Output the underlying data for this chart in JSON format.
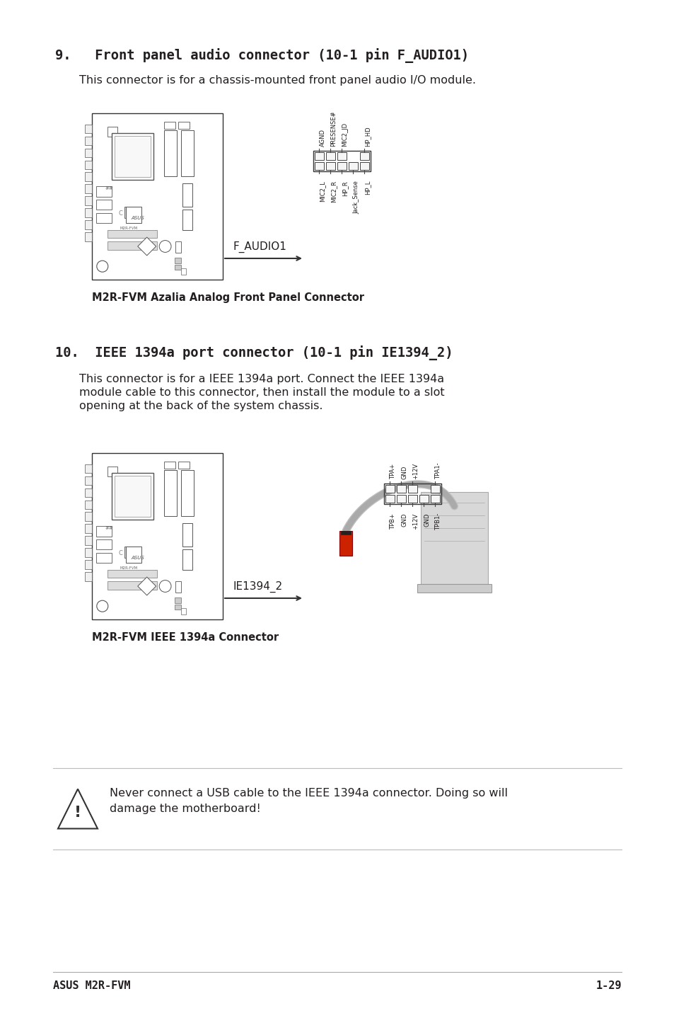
{
  "bg_color": "#ffffff",
  "text_color": "#231f20",
  "footer_left": "ASUS M2R-FVM",
  "footer_right": "1-29",
  "section9_title": "9.   Front panel audio connector (10-1 pin F_AUDIO1)",
  "section9_body": "This connector is for a chassis-mounted front panel audio I/O module.",
  "section9_caption": "M2R-FVM Azalia Analog Front Panel Connector",
  "section9_label": "F_AUDIO1",
  "section9_pins_top": [
    "AGND",
    "PRESENSE#",
    "MIC2_JD",
    "",
    "HP_HD"
  ],
  "section9_pins_bot": [
    "MIC2_L",
    "MIC2_R",
    "HP_R",
    "Jack_Sense",
    "HP_L"
  ],
  "section10_title": "10.  IEEE 1394a port connector (10-1 pin IE1394_2)",
  "section10_body": "This connector is for a IEEE 1394a port. Connect the IEEE 1394a\nmodule cable to this connector, then install the module to a slot\nopening at the back of the system chassis.",
  "section10_caption": "M2R-FVM IEEE 1394a Connector",
  "section10_label": "IE1394_2",
  "section10_pins_top": [
    "TPA+",
    "GND",
    "+12V",
    "",
    "TPA1-"
  ],
  "section10_pins_bot": [
    "TPB+",
    "GND",
    "+12V",
    "GND",
    "TPB1-"
  ],
  "warning_text": "Never connect a USB cable to the IEEE 1394a connector. Doing so will\ndamage the motherboard!"
}
